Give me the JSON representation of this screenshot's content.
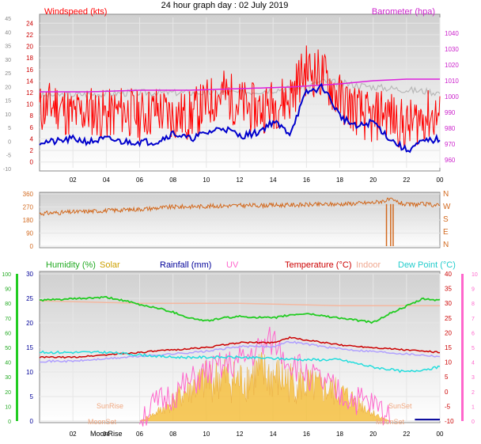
{
  "title": "24 hour graph day : 02 July 2019",
  "colors": {
    "windspeed": "#ff0000",
    "wind_avg": "#0000cc",
    "barometer": "#dd22dd",
    "baro_band": "#b8b8b8",
    "direction": "#d2691e",
    "humidity": "#22cc22",
    "solar": "#f5c040",
    "rainfall": "#000099",
    "uv": "#ff66cc",
    "temperature": "#cc0000",
    "indoor": "#f4b8a0",
    "dewpoint": "#22dddd",
    "feels_like": "#b0a0ff"
  },
  "legend": {
    "windspeed": "Windspeed (kts)",
    "barometer": "Barometer (hpa)",
    "humidity": "Humidity (%)",
    "solar": "Solar",
    "rainfall": "Rainfall (mm)",
    "uv": "UV",
    "temperature": "Temperature (°C)",
    "indoor": "Indoor",
    "dewpoint": "Dew Point (°C)"
  },
  "annotations": {
    "sunrise": "SunRise",
    "sunset": "SunSet",
    "moonrise": "MoonRise",
    "moonset": "MoonSet"
  },
  "chart_data": [
    {
      "type": "line",
      "name": "wind-barometer",
      "x_tick_labels": [
        "02",
        "04",
        "06",
        "08",
        "10",
        "12",
        "14",
        "16",
        "18",
        "20",
        "22",
        "00"
      ],
      "y_left_ticks": [
        0,
        2,
        4,
        6,
        8,
        10,
        12,
        14,
        16,
        18,
        20,
        22,
        24
      ],
      "y_left_outer_ticks": [
        -10,
        -5,
        0,
        5,
        10,
        15,
        20,
        25,
        30,
        35,
        40,
        45
      ],
      "y_right_ticks": [
        960,
        970,
        980,
        990,
        1000,
        1010,
        1020,
        1030,
        1040
      ],
      "ylim_left": [
        -1,
        25
      ],
      "ylim_right": [
        955,
        1050
      ],
      "series": [
        {
          "name": "Windspeed (kts)",
          "key": "gust",
          "x_hours": [
            0,
            1,
            2,
            3,
            4,
            5,
            6,
            7,
            8,
            9,
            10,
            11,
            12,
            13,
            14,
            15,
            15.5,
            16,
            17,
            18,
            19,
            20,
            20.5,
            21,
            22,
            23,
            24
          ],
          "y": [
            9,
            10,
            8,
            9,
            8,
            9,
            8,
            9,
            8,
            8,
            10,
            12,
            10,
            9,
            10,
            11,
            14,
            16,
            15,
            11,
            9,
            7,
            9,
            8,
            6,
            8,
            8
          ]
        },
        {
          "name": "Barometer (hpa)",
          "key": "baro",
          "x_hours": [
            0,
            3,
            6,
            9,
            12,
            15,
            18,
            20,
            22,
            24
          ],
          "y": [
            1003,
            1003,
            1004,
            1004,
            1005,
            1006,
            1008,
            1010,
            1011,
            1011
          ]
        },
        {
          "key": "avg",
          "x_hours": [
            0,
            1,
            2,
            3,
            4,
            5,
            6,
            7,
            8,
            9,
            10,
            11,
            12,
            13,
            14,
            15,
            16,
            17,
            18,
            19,
            20,
            21,
            22,
            23,
            24
          ],
          "y": [
            3.5,
            3.5,
            4,
            3.5,
            4,
            3.5,
            3.5,
            3.5,
            5,
            4,
            5,
            6,
            4.5,
            5,
            7,
            5,
            12,
            13,
            8,
            6,
            7,
            4,
            2,
            3.5,
            4
          ]
        }
      ]
    },
    {
      "type": "line",
      "name": "wind-direction",
      "y_ticks": [
        0,
        90,
        180,
        270,
        360
      ],
      "y_compass": [
        "N",
        "W",
        "S",
        "E",
        "N"
      ],
      "ylim": [
        0,
        360
      ],
      "series": [
        {
          "name": "Direction",
          "x_hours": [
            0,
            2,
            4,
            6,
            8,
            10,
            12,
            14,
            16,
            18,
            19,
            20,
            21,
            22,
            23,
            24
          ],
          "y": [
            225,
            235,
            245,
            255,
            270,
            275,
            280,
            282,
            285,
            290,
            295,
            300,
            320,
            285,
            290,
            280
          ]
        }
      ]
    },
    {
      "type": "line",
      "name": "temp-humidity",
      "y_left_ticks": [
        0,
        5,
        10,
        15,
        20,
        25,
        30
      ],
      "y_outer_left_ticks": [
        0,
        10,
        20,
        30,
        40,
        50,
        60,
        70,
        80,
        90,
        100
      ],
      "y_right_ticks": [
        -10,
        -5,
        0,
        5,
        10,
        15,
        20,
        25,
        30,
        35,
        40
      ],
      "y_uv_ticks": [
        0,
        1,
        2,
        3,
        4,
        5,
        6,
        7,
        8,
        9,
        10
      ],
      "ylim_left": [
        0,
        30
      ],
      "series": [
        {
          "name": "Humidity (%)",
          "key": "hum",
          "x_hours": [
            0,
            2,
            4,
            5,
            6,
            7,
            8,
            9,
            10,
            11,
            12,
            14,
            15,
            16,
            18,
            20,
            21,
            22,
            23,
            24
          ],
          "y": [
            82,
            83,
            84,
            82,
            79,
            77,
            74,
            70,
            68,
            70,
            71,
            70,
            72,
            73,
            70,
            67,
            73,
            78,
            83,
            82
          ]
        },
        {
          "name": "Temperature (°C)",
          "key": "temp",
          "x_hours": [
            0,
            2,
            4,
            6,
            8,
            10,
            12,
            14,
            15,
            16,
            18,
            20,
            22,
            24
          ],
          "y": [
            13,
            13,
            13.5,
            14,
            14.5,
            15,
            16,
            16,
            17,
            16.5,
            15.5,
            15,
            14.5,
            14
          ]
        },
        {
          "name": "Indoor",
          "key": "indoor",
          "x_hours": [
            0,
            6,
            12,
            18,
            24
          ],
          "y": [
            24.5,
            24,
            24,
            23.5,
            23.5
          ]
        },
        {
          "name": "Dew Point (°C)",
          "key": "dew",
          "x_hours": [
            0,
            4,
            8,
            12,
            16,
            18,
            20,
            22,
            24
          ],
          "y": [
            14,
            14,
            13,
            13,
            12.5,
            12.5,
            11,
            10,
            11
          ]
        },
        {
          "name": "Solar",
          "key": "solar",
          "x_hours": [
            6,
            7,
            8,
            9,
            10,
            11,
            12,
            13,
            14,
            15,
            16,
            17,
            18,
            19,
            20,
            21
          ],
          "y": [
            0,
            2,
            5,
            8,
            10,
            11,
            10,
            12,
            11,
            10,
            9,
            8,
            7,
            5,
            2,
            0
          ]
        },
        {
          "name": "UV",
          "key": "uv",
          "x_hours": [
            6,
            8,
            10,
            12,
            13,
            14,
            15,
            16,
            17,
            18,
            20,
            21
          ],
          "y": [
            0,
            2,
            4,
            5,
            6,
            7,
            5,
            4,
            3,
            2,
            1,
            0
          ]
        }
      ]
    }
  ]
}
